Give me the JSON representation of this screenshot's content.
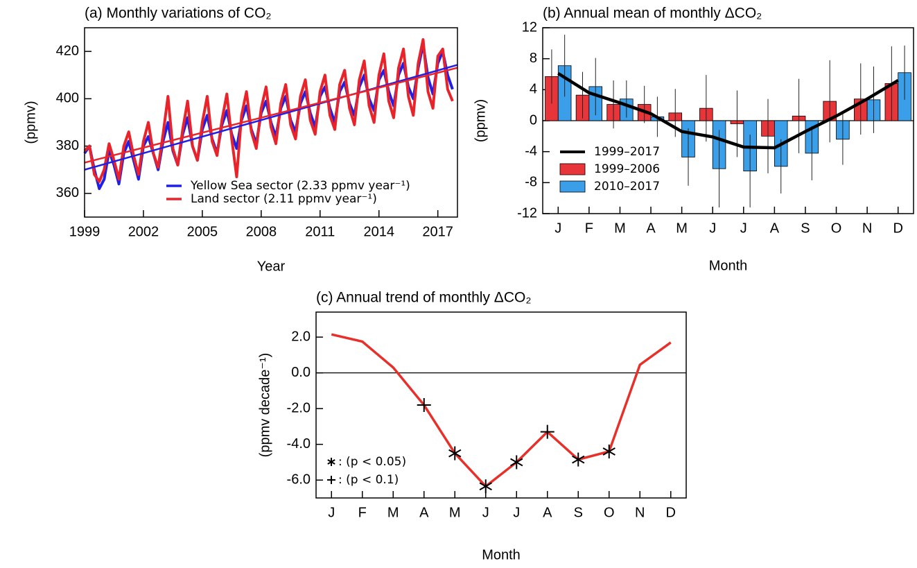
{
  "chart_data": [
    {
      "type": "line",
      "title": "(a) Monthly variations of CO₂",
      "x_label": "Year",
      "y_label": "(ppmv)",
      "x": [
        1999,
        1999.25,
        1999.5,
        1999.75,
        2000,
        2000.25,
        2000.5,
        2000.75,
        2001,
        2001.25,
        2001.5,
        2001.75,
        2002,
        2002.25,
        2002.5,
        2002.75,
        2003,
        2003.25,
        2003.5,
        2003.75,
        2004,
        2004.25,
        2004.5,
        2004.75,
        2005,
        2005.25,
        2005.5,
        2005.75,
        2006,
        2006.25,
        2006.5,
        2006.75,
        2007,
        2007.25,
        2007.5,
        2007.75,
        2008,
        2008.25,
        2008.5,
        2008.75,
        2009,
        2009.25,
        2009.5,
        2009.75,
        2010,
        2010.25,
        2010.5,
        2010.75,
        2011,
        2011.25,
        2011.5,
        2011.75,
        2012,
        2012.25,
        2012.5,
        2012.75,
        2013,
        2013.25,
        2013.5,
        2013.75,
        2014,
        2014.25,
        2014.5,
        2014.75,
        2015,
        2015.25,
        2015.5,
        2015.75,
        2016,
        2016.25,
        2016.5,
        2016.75,
        2017,
        2017.25,
        2017.5,
        2017.75
      ],
      "series": [
        {
          "name": "Yellow Sea sector (2.33 ppmv year⁻¹)",
          "color": "#1f1fe6",
          "values": [
            377,
            380,
            370,
            362,
            366,
            378,
            372,
            364,
            377,
            382,
            374,
            366,
            380,
            384,
            377,
            370,
            382,
            390,
            378,
            372,
            385,
            392,
            380,
            374,
            387,
            393,
            383,
            377,
            389,
            395,
            385,
            379,
            391,
            397,
            387,
            381,
            394,
            399,
            390,
            384,
            396,
            401,
            391,
            386,
            398,
            403,
            394,
            388,
            401,
            405,
            396,
            390,
            403,
            407,
            398,
            393,
            405,
            410,
            400,
            395,
            408,
            412,
            403,
            397,
            410,
            415,
            405,
            400,
            413,
            423,
            409,
            402,
            415,
            420,
            410,
            404
          ]
        },
        {
          "name": "Land sector (2.11 ppmv year⁻¹)",
          "color": "#e8242a",
          "values": [
            378,
            380,
            368,
            365,
            370,
            381,
            374,
            366,
            380,
            386,
            376,
            368,
            382,
            390,
            377,
            371,
            385,
            401,
            379,
            372,
            387,
            399,
            380,
            374,
            390,
            401,
            382,
            376,
            391,
            402,
            383,
            367,
            393,
            403,
            386,
            379,
            396,
            405,
            388,
            381,
            398,
            406,
            389,
            383,
            401,
            408,
            391,
            385,
            403,
            410,
            393,
            387,
            406,
            412,
            396,
            389,
            408,
            416,
            397,
            390,
            410,
            419,
            399,
            392,
            413,
            421,
            401,
            393,
            415,
            425,
            403,
            396,
            418,
            421,
            404,
            399
          ]
        }
      ],
      "trends": [
        {
          "color": "#1f1fe6",
          "x": [
            1999,
            2018
          ],
          "values": [
            370,
            414.3
          ]
        },
        {
          "color": "#e8242a",
          "x": [
            1999,
            2018
          ],
          "values": [
            373,
            413.1
          ]
        }
      ],
      "xlim": [
        1999,
        2018
      ],
      "xticks": [
        1999,
        2002,
        2005,
        2008,
        2011,
        2014,
        2017
      ],
      "ylim": [
        350,
        430
      ],
      "yticks": [
        360,
        380,
        400,
        420
      ]
    },
    {
      "type": "bar",
      "title": "(b) Annual mean of monthly ΔCO₂",
      "x_label": "Month",
      "y_label": "(ppmv)",
      "categories": [
        "J",
        "F",
        "M",
        "A",
        "M",
        "J",
        "J",
        "A",
        "S",
        "O",
        "N",
        "D"
      ],
      "series": [
        {
          "name": "1999–2017",
          "type": "line",
          "color": "#000000",
          "values": [
            6.1,
            3.6,
            2.3,
            0.9,
            -1.4,
            -2.1,
            -3.4,
            -3.5,
            -1.4,
            0.6,
            2.8,
            5.2
          ]
        },
        {
          "name": "1999–2006",
          "type": "bar",
          "color": "#e8353a",
          "values": [
            5.7,
            3.3,
            2.1,
            2.1,
            1.0,
            1.6,
            -0.4,
            -2.0,
            0.6,
            2.5,
            2.8,
            4.8
          ],
          "errors": [
            3.5,
            3.0,
            3.1,
            2.4,
            3.1,
            4.3,
            4.3,
            4.8,
            4.8,
            5.3,
            4.6,
            4.8
          ]
        },
        {
          "name": "2010–2017",
          "type": "bar",
          "color": "#3a9ee8",
          "values": [
            7.1,
            4.4,
            2.8,
            0.5,
            -4.7,
            -6.2,
            -6.5,
            -5.9,
            -4.2,
            -2.4,
            2.7,
            6.2
          ],
          "errors": [
            4.0,
            3.7,
            2.4,
            2.6,
            3.7,
            5.0,
            4.7,
            3.5,
            3.5,
            3.3,
            4.3,
            3.5
          ]
        }
      ],
      "ylim": [
        -12,
        12
      ],
      "yticks": [
        -12,
        -8,
        -4,
        0,
        4,
        8,
        12
      ],
      "zero_line": true
    },
    {
      "type": "line",
      "title": "(c) Annual trend of monthly ΔCO₂",
      "x_label": "Month",
      "y_label": "(ppmv decade⁻¹)",
      "categories": [
        "J",
        "F",
        "M",
        "A",
        "M",
        "J",
        "J",
        "A",
        "S",
        "O",
        "N",
        "D"
      ],
      "series": [
        {
          "color": "#e8302a",
          "values": [
            2.15,
            1.75,
            0.3,
            -1.8,
            -4.5,
            -6.35,
            -5.0,
            -3.3,
            -4.85,
            -4.4,
            0.45,
            1.7
          ],
          "markers": [
            null,
            null,
            null,
            "+",
            "*",
            "*",
            "*",
            "+",
            "*",
            "*",
            null,
            null
          ]
        }
      ],
      "significance_key": [
        {
          "symbol": "*",
          "label": ": (p < 0.05)"
        },
        {
          "symbol": "+",
          "label": ": (p < 0.1)"
        }
      ],
      "ylim": [
        -7,
        3.4
      ],
      "yticks": [
        {
          "value": -6,
          "label": "-6.0"
        },
        {
          "value": -4,
          "label": "-4.0"
        },
        {
          "value": -2,
          "label": "-2.0"
        },
        {
          "value": 0,
          "label": "0.0"
        },
        {
          "value": 2,
          "label": "2.0"
        }
      ],
      "zero_line": true
    }
  ]
}
